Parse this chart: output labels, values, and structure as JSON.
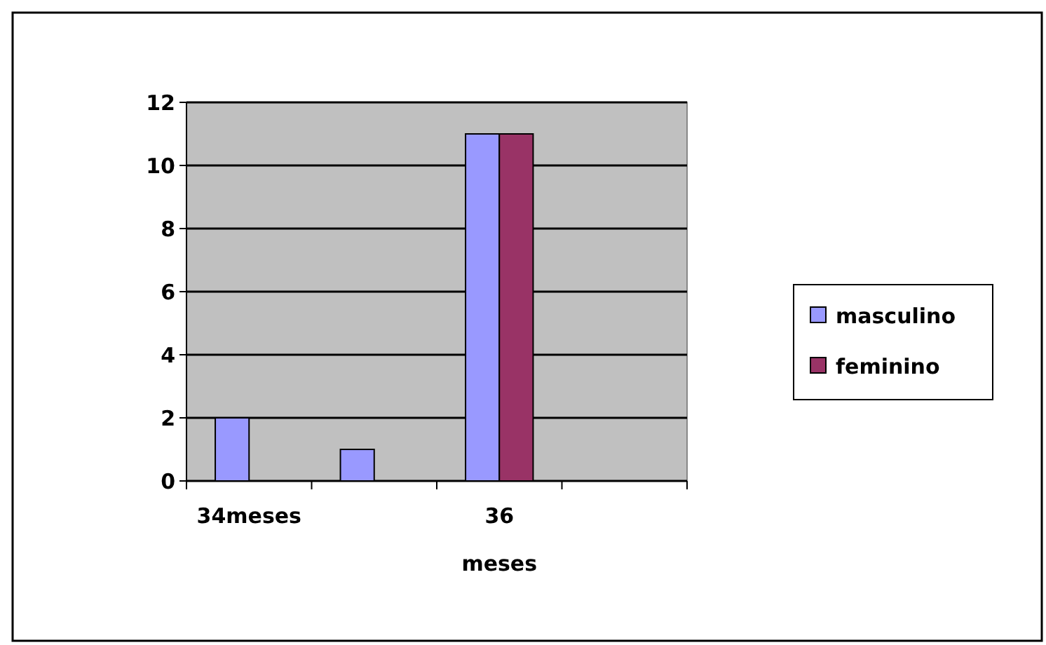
{
  "chart_data": {
    "type": "bar",
    "categories": [
      "34meses",
      null,
      "36 meses",
      null
    ],
    "series": [
      {
        "name": "masculino",
        "color": "#9999ff",
        "values": [
          2,
          1,
          11,
          null
        ]
      },
      {
        "name": "feminino",
        "color": "#993366",
        "values": [
          null,
          null,
          11,
          null
        ]
      }
    ],
    "ylim": [
      0,
      12
    ],
    "yticks": [
      0,
      2,
      4,
      6,
      8,
      10,
      12
    ],
    "grid": "y",
    "legend": "right"
  }
}
